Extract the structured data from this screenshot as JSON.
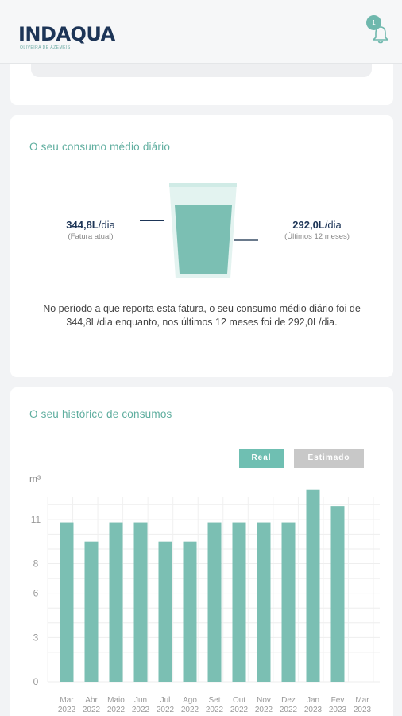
{
  "header": {
    "logo_text_a": "INDA",
    "logo_text_b": "QUA",
    "logo_tagline": "OLIVEIRA DE AZEMÉIS",
    "notifications_count": "1",
    "accent_color": "#6fb8ad",
    "brand_color": "#1d3557"
  },
  "consumption": {
    "title": "O seu consumo médio diário",
    "current_value": "344,8L",
    "current_unit": "/dia",
    "current_label": "(Fatura atual)",
    "average_value": "292,0L",
    "average_unit": "/dia",
    "average_label": "(Últimos 12 meses)",
    "description": "No período a que reporta esta fatura, o seu consumo médio diário foi de 344,8L/dia enquanto, nos últimos 12 meses foi de 292,0L/dia."
  },
  "history": {
    "title": "O seu histórico de consumos",
    "legend_real": "Real",
    "legend_estimated": "Estimado",
    "real_color": "#7bbfb3",
    "estimated_color": "#c8c8c8"
  },
  "chart_data": {
    "type": "bar",
    "ylabel": "m³",
    "ylim": [
      0,
      12.5
    ],
    "yticks": [
      0,
      3,
      6,
      8,
      11
    ],
    "grid": true,
    "categories": [
      {
        "month": "Mar",
        "year": "2022"
      },
      {
        "month": "Abr",
        "year": "2022"
      },
      {
        "month": "Maio",
        "year": "2022"
      },
      {
        "month": "Jun",
        "year": "2022"
      },
      {
        "month": "Jul",
        "year": "2022"
      },
      {
        "month": "Ago",
        "year": "2022"
      },
      {
        "month": "Set",
        "year": "2022"
      },
      {
        "month": "Out",
        "year": "2022"
      },
      {
        "month": "Nov",
        "year": "2022"
      },
      {
        "month": "Dez",
        "year": "2022"
      },
      {
        "month": "Jan",
        "year": "2023"
      },
      {
        "month": "Fev",
        "year": "2023"
      },
      {
        "month": "Mar",
        "year": "2023"
      }
    ],
    "values": [
      10.8,
      9.5,
      10.8,
      10.8,
      9.5,
      9.5,
      10.8,
      10.8,
      10.8,
      10.8,
      13.0,
      11.9,
      null
    ]
  }
}
